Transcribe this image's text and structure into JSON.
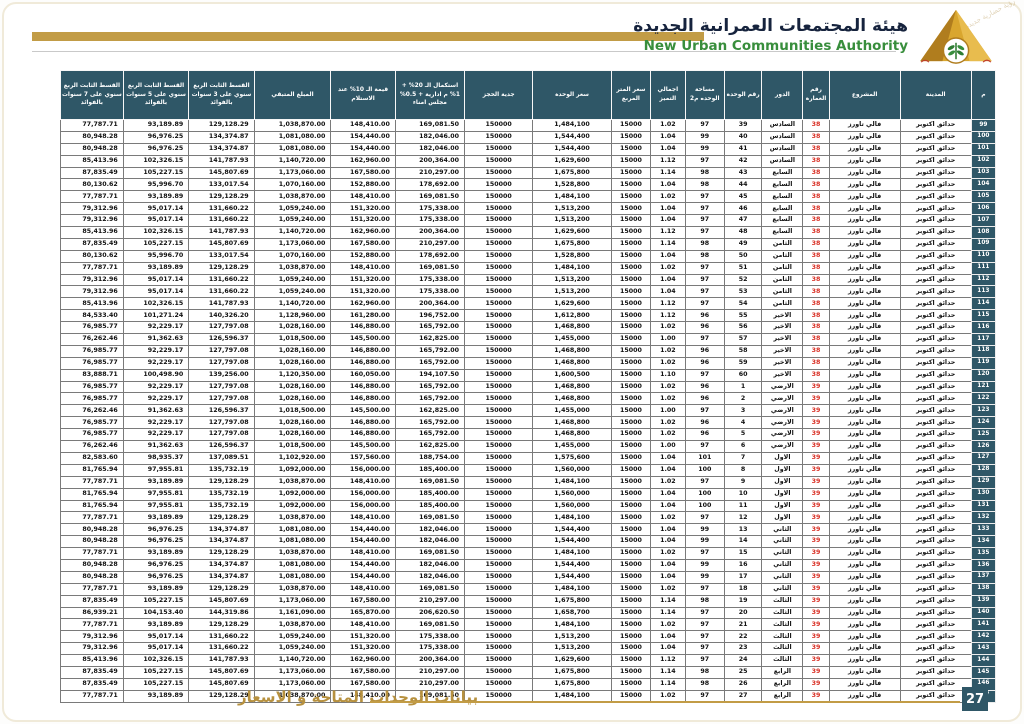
{
  "header": {
    "authority_name_ar": "هيئة المجتمعات العمرانية الجديدة",
    "authority_name_en": "New Urban Communities Authority",
    "slogan": "رؤية حضارية جديدة"
  },
  "footer": {
    "title": "بيانات الوحدات المتاحة و الاسعار",
    "page_number": "27"
  },
  "colors": {
    "header_teal": "#2f5767",
    "brand_gold": "#c29c46",
    "building_red": "#d93025",
    "brand_green": "#388e3c"
  },
  "table": {
    "columns": [
      {
        "id": "num",
        "label": "م"
      },
      {
        "id": "city",
        "label": "المدينة"
      },
      {
        "id": "project",
        "label": "المشروع"
      },
      {
        "id": "building-number",
        "label": "رقم العمارة"
      },
      {
        "id": "floor",
        "label": "الدور"
      },
      {
        "id": "unit-number",
        "label": "رقم الوحدة"
      },
      {
        "id": "unit-area-m2",
        "label": "مساحة الوحده م2"
      },
      {
        "id": "premium-total",
        "label": "اجمالي التميز"
      },
      {
        "id": "price-per-m2",
        "label": "سعر المتر المربع"
      },
      {
        "id": "unit-price",
        "label": "سعر الوحدة"
      },
      {
        "id": "reservation-deposit",
        "label": "جدية الحجز"
      },
      {
        "id": "completion-20pct",
        "label": "استكمال الـ 20% + 1% م ادارية + 0.5% مجلس امناء"
      },
      {
        "id": "value-10pct-delivery",
        "label": "قيمة الـ 10% عند الاستلام"
      },
      {
        "id": "remaining-amount",
        "label": "المبلغ المتبقي"
      },
      {
        "id": "installment-3y",
        "label": "القسط الثابت الربع سنوي على 3 سنوات بالفوائد"
      },
      {
        "id": "installment-5y",
        "label": "القسط الثابت الربع سنوي على 5 سنوات بالفوائد"
      },
      {
        "id": "installment-7y",
        "label": "القسط الثابت الربع سنوي على 7 سنوات بالفوائد"
      }
    ],
    "rows": [
      [
        "99",
        "حدائق اكتوبر",
        "فالي تاورز",
        "38",
        "السادس",
        "39",
        "97",
        "1.02",
        "15000",
        "1,484,100",
        "150000",
        "169,081.50",
        "148,410.00",
        "1,038,870.00",
        "129,128.29",
        "93,189.89",
        "77,787.71"
      ],
      [
        "100",
        "حدائق اكتوبر",
        "فالي تاورز",
        "38",
        "السادس",
        "40",
        "99",
        "1.04",
        "15000",
        "1,544,400",
        "150000",
        "182,046.00",
        "154,440.00",
        "1,081,080.00",
        "134,374.87",
        "96,976.25",
        "80,948.28"
      ],
      [
        "101",
        "حدائق اكتوبر",
        "فالي تاورز",
        "38",
        "السادس",
        "41",
        "99",
        "1.04",
        "15000",
        "1,544,400",
        "150000",
        "182,046.00",
        "154,440.00",
        "1,081,080.00",
        "134,374.87",
        "96,976.25",
        "80,948.28"
      ],
      [
        "102",
        "حدائق اكتوبر",
        "فالي تاورز",
        "38",
        "السادس",
        "42",
        "97",
        "1.12",
        "15000",
        "1,629,600",
        "150000",
        "200,364.00",
        "162,960.00",
        "1,140,720.00",
        "141,787.93",
        "102,326.15",
        "85,413.96"
      ],
      [
        "103",
        "حدائق اكتوبر",
        "فالي تاورز",
        "38",
        "السابع",
        "43",
        "98",
        "1.14",
        "15000",
        "1,675,800",
        "150000",
        "210,297.00",
        "167,580.00",
        "1,173,060.00",
        "145,807.69",
        "105,227.15",
        "87,835.49"
      ],
      [
        "104",
        "حدائق اكتوبر",
        "فالي تاورز",
        "38",
        "السابع",
        "44",
        "98",
        "1.04",
        "15000",
        "1,528,800",
        "150000",
        "178,692.00",
        "152,880.00",
        "1,070,160.00",
        "133,017.54",
        "95,996.70",
        "80,130.62"
      ],
      [
        "105",
        "حدائق اكتوبر",
        "فالي تاورز",
        "38",
        "السابع",
        "45",
        "97",
        "1.02",
        "15000",
        "1,484,100",
        "150000",
        "169,081.50",
        "148,410.00",
        "1,038,870.00",
        "129,128.29",
        "93,189.89",
        "77,787.71"
      ],
      [
        "106",
        "حدائق اكتوبر",
        "فالي تاورز",
        "38",
        "السابع",
        "46",
        "97",
        "1.04",
        "15000",
        "1,513,200",
        "150000",
        "175,338.00",
        "151,320.00",
        "1,059,240.00",
        "131,660.22",
        "95,017.14",
        "79,312.96"
      ],
      [
        "107",
        "حدائق اكتوبر",
        "فالي تاورز",
        "38",
        "السابع",
        "47",
        "97",
        "1.04",
        "15000",
        "1,513,200",
        "150000",
        "175,338.00",
        "151,320.00",
        "1,059,240.00",
        "131,660.22",
        "95,017.14",
        "79,312.96"
      ],
      [
        "108",
        "حدائق اكتوبر",
        "فالي تاورز",
        "38",
        "السابع",
        "48",
        "97",
        "1.12",
        "15000",
        "1,629,600",
        "150000",
        "200,364.00",
        "162,960.00",
        "1,140,720.00",
        "141,787.93",
        "102,326.15",
        "85,413.96"
      ],
      [
        "109",
        "حدائق اكتوبر",
        "فالي تاورز",
        "38",
        "الثامن",
        "49",
        "98",
        "1.14",
        "15000",
        "1,675,800",
        "150000",
        "210,297.00",
        "167,580.00",
        "1,173,060.00",
        "145,807.69",
        "105,227.15",
        "87,835.49"
      ],
      [
        "110",
        "حدائق اكتوبر",
        "فالي تاورز",
        "38",
        "الثامن",
        "50",
        "98",
        "1.04",
        "15000",
        "1,528,800",
        "150000",
        "178,692.00",
        "152,880.00",
        "1,070,160.00",
        "133,017.54",
        "95,996.70",
        "80,130.62"
      ],
      [
        "111",
        "حدائق اكتوبر",
        "فالي تاورز",
        "38",
        "الثامن",
        "51",
        "97",
        "1.02",
        "15000",
        "1,484,100",
        "150000",
        "169,081.50",
        "148,410.00",
        "1,038,870.00",
        "129,128.29",
        "93,189.89",
        "77,787.71"
      ],
      [
        "112",
        "حدائق اكتوبر",
        "فالي تاورز",
        "38",
        "الثامن",
        "52",
        "97",
        "1.04",
        "15000",
        "1,513,200",
        "150000",
        "175,338.00",
        "151,320.00",
        "1,059,240.00",
        "131,660.22",
        "95,017.14",
        "79,312.96"
      ],
      [
        "113",
        "حدائق اكتوبر",
        "فالي تاورز",
        "38",
        "الثامن",
        "53",
        "97",
        "1.04",
        "15000",
        "1,513,200",
        "150000",
        "175,338.00",
        "151,320.00",
        "1,059,240.00",
        "131,660.22",
        "95,017.14",
        "79,312.96"
      ],
      [
        "114",
        "حدائق اكتوبر",
        "فالي تاورز",
        "38",
        "الثامن",
        "54",
        "97",
        "1.12",
        "15000",
        "1,629,600",
        "150000",
        "200,364.00",
        "162,960.00",
        "1,140,720.00",
        "141,787.93",
        "102,326.15",
        "85,413.96"
      ],
      [
        "115",
        "حدائق اكتوبر",
        "فالي تاورز",
        "38",
        "الاخير",
        "55",
        "96",
        "1.12",
        "15000",
        "1,612,800",
        "150000",
        "196,752.00",
        "161,280.00",
        "1,128,960.00",
        "140,326.20",
        "101,271.24",
        "84,533.40"
      ],
      [
        "116",
        "حدائق اكتوبر",
        "فالي تاورز",
        "38",
        "الاخير",
        "56",
        "96",
        "1.02",
        "15000",
        "1,468,800",
        "150000",
        "165,792.00",
        "146,880.00",
        "1,028,160.00",
        "127,797.08",
        "92,229.17",
        "76,985.77"
      ],
      [
        "117",
        "حدائق اكتوبر",
        "فالي تاورز",
        "38",
        "الاخير",
        "57",
        "97",
        "1.00",
        "15000",
        "1,455,000",
        "150000",
        "162,825.00",
        "145,500.00",
        "1,018,500.00",
        "126,596.37",
        "91,362.63",
        "76,262.46"
      ],
      [
        "118",
        "حدائق اكتوبر",
        "فالي تاورز",
        "38",
        "الاخير",
        "58",
        "96",
        "1.02",
        "15000",
        "1,468,800",
        "150000",
        "165,792.00",
        "146,880.00",
        "1,028,160.00",
        "127,797.08",
        "92,229.17",
        "76,985.77"
      ],
      [
        "119",
        "حدائق اكتوبر",
        "فالي تاورز",
        "38",
        "الاخير",
        "59",
        "96",
        "1.02",
        "15000",
        "1,468,800",
        "150000",
        "165,792.00",
        "146,880.00",
        "1,028,160.00",
        "127,797.08",
        "92,229.17",
        "76,985.77"
      ],
      [
        "120",
        "حدائق اكتوبر",
        "فالي تاورز",
        "38",
        "الاخير",
        "60",
        "97",
        "1.10",
        "15000",
        "1,600,500",
        "150000",
        "194,107.50",
        "160,050.00",
        "1,120,350.00",
        "139,256.00",
        "100,498.90",
        "83,888.71"
      ],
      [
        "121",
        "حدائق اكتوبر",
        "فالي تاورز",
        "39",
        "الارضي",
        "1",
        "96",
        "1.02",
        "15000",
        "1,468,800",
        "150000",
        "165,792.00",
        "146,880.00",
        "1,028,160.00",
        "127,797.08",
        "92,229.17",
        "76,985.77"
      ],
      [
        "122",
        "حدائق اكتوبر",
        "فالي تاورز",
        "39",
        "الارضي",
        "2",
        "96",
        "1.02",
        "15000",
        "1,468,800",
        "150000",
        "165,792.00",
        "146,880.00",
        "1,028,160.00",
        "127,797.08",
        "92,229.17",
        "76,985.77"
      ],
      [
        "123",
        "حدائق اكتوبر",
        "فالي تاورز",
        "39",
        "الارضي",
        "3",
        "97",
        "1.00",
        "15000",
        "1,455,000",
        "150000",
        "162,825.00",
        "145,500.00",
        "1,018,500.00",
        "126,596.37",
        "91,362.63",
        "76,262.46"
      ],
      [
        "124",
        "حدائق اكتوبر",
        "فالي تاورز",
        "39",
        "الارضي",
        "4",
        "96",
        "1.02",
        "15000",
        "1,468,800",
        "150000",
        "165,792.00",
        "146,880.00",
        "1,028,160.00",
        "127,797.08",
        "92,229.17",
        "76,985.77"
      ],
      [
        "125",
        "حدائق اكتوبر",
        "فالي تاورز",
        "39",
        "الارضي",
        "5",
        "96",
        "1.02",
        "15000",
        "1,468,800",
        "150000",
        "165,792.00",
        "146,880.00",
        "1,028,160.00",
        "127,797.08",
        "92,229.17",
        "76,985.77"
      ],
      [
        "126",
        "حدائق اكتوبر",
        "فالي تاورز",
        "39",
        "الارضي",
        "6",
        "97",
        "1.00",
        "15000",
        "1,455,000",
        "150000",
        "162,825.00",
        "145,500.00",
        "1,018,500.00",
        "126,596.37",
        "91,362.63",
        "76,262.46"
      ],
      [
        "127",
        "حدائق اكتوبر",
        "فالي تاورز",
        "39",
        "الاول",
        "7",
        "101",
        "1.04",
        "15000",
        "1,575,600",
        "150000",
        "188,754.00",
        "157,560.00",
        "1,102,920.00",
        "137,089.51",
        "98,935.37",
        "82,583.60"
      ],
      [
        "128",
        "حدائق اكتوبر",
        "فالي تاورز",
        "39",
        "الاول",
        "8",
        "100",
        "1.04",
        "15000",
        "1,560,000",
        "150000",
        "185,400.00",
        "156,000.00",
        "1,092,000.00",
        "135,732.19",
        "97,955.81",
        "81,765.94"
      ],
      [
        "129",
        "حدائق اكتوبر",
        "فالي تاورز",
        "39",
        "الاول",
        "9",
        "97",
        "1.02",
        "15000",
        "1,484,100",
        "150000",
        "169,081.50",
        "148,410.00",
        "1,038,870.00",
        "129,128.29",
        "93,189.89",
        "77,787.71"
      ],
      [
        "130",
        "حدائق اكتوبر",
        "فالي تاورز",
        "39",
        "الاول",
        "10",
        "100",
        "1.04",
        "15000",
        "1,560,000",
        "150000",
        "185,400.00",
        "156,000.00",
        "1,092,000.00",
        "135,732.19",
        "97,955.81",
        "81,765.94"
      ],
      [
        "131",
        "حدائق اكتوبر",
        "فالي تاورز",
        "39",
        "الاول",
        "11",
        "100",
        "1.04",
        "15000",
        "1,560,000",
        "150000",
        "185,400.00",
        "156,000.00",
        "1,092,000.00",
        "135,732.19",
        "97,955.81",
        "81,765.94"
      ],
      [
        "132",
        "حدائق اكتوبر",
        "فالي تاورز",
        "39",
        "الاول",
        "12",
        "97",
        "1.02",
        "15000",
        "1,484,100",
        "150000",
        "169,081.50",
        "148,410.00",
        "1,038,870.00",
        "129,128.29",
        "93,189.89",
        "77,787.71"
      ],
      [
        "133",
        "حدائق اكتوبر",
        "فالي تاورز",
        "39",
        "الثاني",
        "13",
        "99",
        "1.04",
        "15000",
        "1,544,400",
        "150000",
        "182,046.00",
        "154,440.00",
        "1,081,080.00",
        "134,374.87",
        "96,976.25",
        "80,948.28"
      ],
      [
        "134",
        "حدائق اكتوبر",
        "فالي تاورز",
        "39",
        "الثاني",
        "14",
        "99",
        "1.04",
        "15000",
        "1,544,400",
        "150000",
        "182,046.00",
        "154,440.00",
        "1,081,080.00",
        "134,374.87",
        "96,976.25",
        "80,948.28"
      ],
      [
        "135",
        "حدائق اكتوبر",
        "فالي تاورز",
        "39",
        "الثاني",
        "15",
        "97",
        "1.02",
        "15000",
        "1,484,100",
        "150000",
        "169,081.50",
        "148,410.00",
        "1,038,870.00",
        "129,128.29",
        "93,189.89",
        "77,787.71"
      ],
      [
        "136",
        "حدائق اكتوبر",
        "فالي تاورز",
        "39",
        "الثاني",
        "16",
        "99",
        "1.04",
        "15000",
        "1,544,400",
        "150000",
        "182,046.00",
        "154,440.00",
        "1,081,080.00",
        "134,374.87",
        "96,976.25",
        "80,948.28"
      ],
      [
        "137",
        "حدائق اكتوبر",
        "فالي تاورز",
        "39",
        "الثاني",
        "17",
        "99",
        "1.04",
        "15000",
        "1,544,400",
        "150000",
        "182,046.00",
        "154,440.00",
        "1,081,080.00",
        "134,374.87",
        "96,976.25",
        "80,948.28"
      ],
      [
        "138",
        "حدائق اكتوبر",
        "فالي تاورز",
        "39",
        "الثاني",
        "18",
        "97",
        "1.02",
        "15000",
        "1,484,100",
        "150000",
        "169,081.50",
        "148,410.00",
        "1,038,870.00",
        "129,128.29",
        "93,189.89",
        "77,787.71"
      ],
      [
        "139",
        "حدائق اكتوبر",
        "فالي تاورز",
        "39",
        "الثالث",
        "19",
        "98",
        "1.14",
        "15000",
        "1,675,800",
        "150000",
        "210,297.00",
        "167,580.00",
        "1,173,060.00",
        "145,807.69",
        "105,227.15",
        "87,835.49"
      ],
      [
        "140",
        "حدائق اكتوبر",
        "فالي تاورز",
        "39",
        "الثالث",
        "20",
        "97",
        "1.14",
        "15000",
        "1,658,700",
        "150000",
        "206,620.50",
        "165,870.00",
        "1,161,090.00",
        "144,319.86",
        "104,153.40",
        "86,939.21"
      ],
      [
        "141",
        "حدائق اكتوبر",
        "فالي تاورز",
        "39",
        "الثالث",
        "21",
        "97",
        "1.02",
        "15000",
        "1,484,100",
        "150000",
        "169,081.50",
        "148,410.00",
        "1,038,870.00",
        "129,128.29",
        "93,189.89",
        "77,787.71"
      ],
      [
        "142",
        "حدائق اكتوبر",
        "فالي تاورز",
        "39",
        "الثالث",
        "22",
        "97",
        "1.04",
        "15000",
        "1,513,200",
        "150000",
        "175,338.00",
        "151,320.00",
        "1,059,240.00",
        "131,660.22",
        "95,017.14",
        "79,312.96"
      ],
      [
        "143",
        "حدائق اكتوبر",
        "فالي تاورز",
        "39",
        "الثالث",
        "23",
        "97",
        "1.04",
        "15000",
        "1,513,200",
        "150000",
        "175,338.00",
        "151,320.00",
        "1,059,240.00",
        "131,660.22",
        "95,017.14",
        "79,312.96"
      ],
      [
        "144",
        "حدائق اكتوبر",
        "فالي تاورز",
        "39",
        "الثالث",
        "24",
        "97",
        "1.12",
        "15000",
        "1,629,600",
        "150000",
        "200,364.00",
        "162,960.00",
        "1,140,720.00",
        "141,787.93",
        "102,326.15",
        "85,413.96"
      ],
      [
        "145",
        "حدائق اكتوبر",
        "فالي تاورز",
        "39",
        "الرابع",
        "25",
        "98",
        "1.14",
        "15000",
        "1,675,800",
        "150000",
        "210,297.00",
        "167,580.00",
        "1,173,060.00",
        "145,807.69",
        "105,227.15",
        "87,835.49"
      ],
      [
        "146",
        "حدائق اكتوبر",
        "فالي تاورز",
        "39",
        "الرابع",
        "26",
        "98",
        "1.14",
        "15000",
        "1,675,800",
        "150000",
        "210,297.00",
        "167,580.00",
        "1,173,060.00",
        "145,807.69",
        "105,227.15",
        "87,835.49"
      ],
      [
        "147",
        "حدائق اكتوبر",
        "فالي تاورز",
        "39",
        "الرابع",
        "27",
        "97",
        "1.02",
        "15000",
        "1,484,100",
        "150000",
        "169,081.50",
        "148,410.00",
        "1,038,870.00",
        "129,128.29",
        "93,189.89",
        "77,787.71"
      ]
    ]
  }
}
